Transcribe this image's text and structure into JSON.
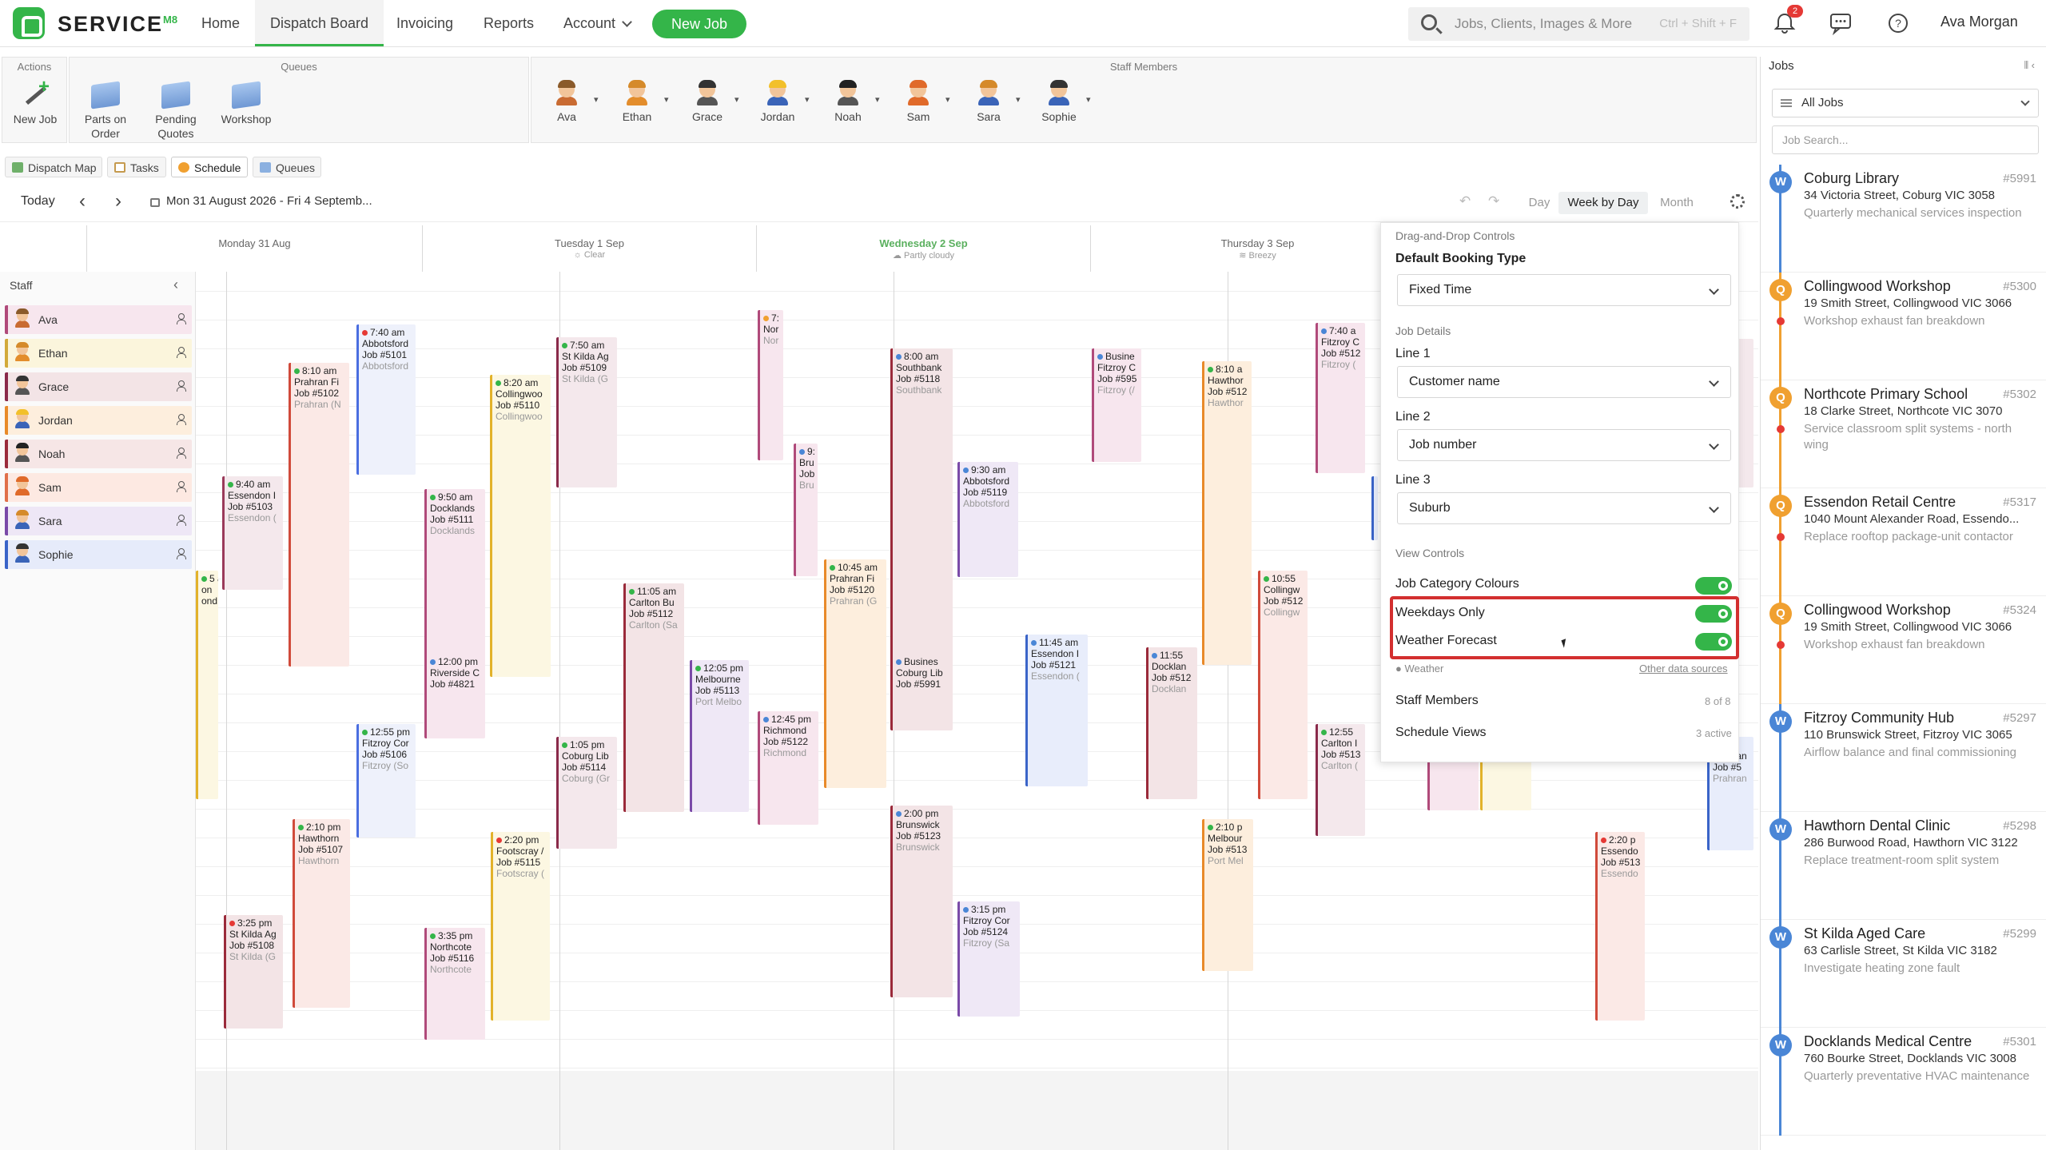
{
  "app": {
    "brand": "SERVICE",
    "brand_sup": "M8",
    "nav": [
      "Home",
      "Dispatch Board",
      "Invoicing",
      "Reports",
      "Account"
    ],
    "new_job": "New Job",
    "search_placeholder": "Jobs, Clients, Images & More",
    "search_shortcut": "Ctrl + Shift + F",
    "notification_count": "2",
    "user_name": "Ava Morgan"
  },
  "toolbar": {
    "actions_title": "Actions",
    "queues_title": "Queues",
    "staff_title": "Staff Members",
    "new_job": "New Job",
    "queues": [
      "Parts on Order",
      "Pending Quotes",
      "Workshop"
    ],
    "staff": [
      "Ava",
      "Ethan",
      "Grace",
      "Jordan",
      "Noah",
      "Sam",
      "Sara",
      "Sophie"
    ]
  },
  "tabs": [
    "Dispatch Map",
    "Tasks",
    "Schedule",
    "Queues"
  ],
  "calendar": {
    "today": "Today",
    "range": "Mon 31 August 2026 - Fri 4 Septemb...",
    "views": [
      "Day",
      "Week by Day",
      "Month"
    ],
    "days": [
      {
        "name": "Monday 31 Aug",
        "weather": ""
      },
      {
        "name": "Tuesday 1 Sep",
        "weather": "Clear"
      },
      {
        "name": "Wednesday 2 Sep",
        "weather": "Partly cloudy"
      },
      {
        "name": "Thursday 3 Sep",
        "weather": "Breezy"
      }
    ]
  },
  "staff_panel": {
    "title": "Staff",
    "members": [
      "Ava",
      "Ethan",
      "Grace",
      "Jordan",
      "Noah",
      "Sam",
      "Sara",
      "Sophie"
    ]
  },
  "settings": {
    "dnd_title": "Drag-and-Drop Controls",
    "booking_type_label": "Default Booking Type",
    "booking_type_value": "Fixed Time",
    "job_details_title": "Job Details",
    "line1_label": "Line 1",
    "line1_value": "Customer name",
    "line2_label": "Line 2",
    "line2_value": "Job number",
    "line3_label": "Line 3",
    "line3_value": "Suburb",
    "view_controls_title": "View Controls",
    "job_category_colours": "Job Category Colours",
    "weekdays_only": "Weekdays Only",
    "weather_forecast": "Weather Forecast",
    "weather_source": "Weather",
    "other_sources": "Other data sources",
    "staff_members": "Staff Members",
    "staff_members_count": "8 of 8",
    "schedule_views": "Schedule Views",
    "schedule_views_count": "3 active"
  },
  "jobs_panel": {
    "title": "Jobs",
    "filter": "All Jobs",
    "search_placeholder": "Job Search...",
    "items": [
      {
        "badge": "W",
        "title": "Coburg Library",
        "number": "#5991",
        "address": "34 Victoria Street, Coburg VIC 3058",
        "desc": "Quarterly mechanical services inspection",
        "color": "#4a86d6"
      },
      {
        "badge": "Q",
        "title": "Collingwood Workshop",
        "number": "#5300",
        "address": "19 Smith Street, Collingwood VIC 3066",
        "desc": "Workshop exhaust fan breakdown",
        "color": "#f0a030"
      },
      {
        "badge": "Q",
        "title": "Northcote Primary School",
        "number": "#5302",
        "address": "18 Clarke Street, Northcote VIC 3070",
        "desc": "Service classroom split systems - north wing",
        "color": "#f0a030"
      },
      {
        "badge": "Q",
        "title": "Essendon Retail Centre",
        "number": "#5317",
        "address": "1040 Mount Alexander Road, Essendo...",
        "desc": "Replace rooftop package-unit contactor",
        "color": "#f0a030"
      },
      {
        "badge": "Q",
        "title": "Collingwood Workshop",
        "number": "#5324",
        "address": "19 Smith Street, Collingwood VIC 3066",
        "desc": "Workshop exhaust fan breakdown",
        "color": "#f0a030"
      },
      {
        "badge": "W",
        "title": "Fitzroy Community Hub",
        "number": "#5297",
        "address": "110 Brunswick Street, Fitzroy VIC 3065",
        "desc": "Airflow balance and final commissioning",
        "color": "#4a86d6"
      },
      {
        "badge": "W",
        "title": "Hawthorn Dental Clinic",
        "number": "#5298",
        "address": "286 Burwood Road, Hawthorn VIC 3122",
        "desc": "Replace treatment-room split system",
        "color": "#4a86d6"
      },
      {
        "badge": "W",
        "title": "St Kilda Aged Care",
        "number": "#5299",
        "address": "63 Carlisle Street, St Kilda VIC 3182",
        "desc": "Investigate heating zone fault",
        "color": "#4a86d6"
      },
      {
        "badge": "W",
        "title": "Docklands Medical Centre",
        "number": "#5301",
        "address": "760 Bourke Street, Docklands VIC 3008",
        "desc": "Quarterly preventative HVAC maintenance",
        "color": "#4a86d6"
      }
    ]
  },
  "grid_jobs": [
    {
      "time": "7:40 am",
      "client": "Abbotsford",
      "job": "Job #5101",
      "sub": "Abbotsford"
    },
    {
      "time": "8:10 am",
      "client": "Prahran Fi",
      "job": "Job #5102",
      "sub": "Prahran (N"
    },
    {
      "time": "9:40 am",
      "client": "Essendon I",
      "job": "Job #5103",
      "sub": "Essendon ("
    },
    {
      "time": "12:55 pm",
      "client": "Fitzroy Cor",
      "job": "Job #5106",
      "sub": "Fitzroy (So"
    },
    {
      "time": "2:10 pm",
      "client": "Hawthorn",
      "job": "Job #5107",
      "sub": "Hawthorn"
    },
    {
      "time": "3:25 pm",
      "client": "St Kilda Ag",
      "job": "Job #5108",
      "sub": "St Kilda (G"
    },
    {
      "time": "7:50 am",
      "client": "St Kilda Ag",
      "job": "Job #5109",
      "sub": "St Kilda (G"
    },
    {
      "time": "8:20 am",
      "client": "Collingwoo",
      "job": "Job #5110",
      "sub": "Collingwoo"
    },
    {
      "time": "9:50 am",
      "client": "Docklands",
      "job": "Job #5111",
      "sub": "Docklands"
    },
    {
      "time": "11:05 am",
      "client": "Carlton Bu",
      "job": "Job #5112",
      "sub": "Carlton (Sa"
    },
    {
      "time": "12:05 pm",
      "client": "Melbourne",
      "job": "Job #5113",
      "sub": "Port Melbo"
    },
    {
      "time": "12:00 pm",
      "client": "Riverside C",
      "job": "Job #4821",
      "sub": ""
    },
    {
      "time": "1:05 pm",
      "client": "Coburg Lib",
      "job": "Job #5114",
      "sub": "Coburg (Gr"
    },
    {
      "time": "2:20 pm",
      "client": "Footscray /",
      "job": "Job #5115",
      "sub": "Footscray ("
    },
    {
      "time": "3:35 pm",
      "client": "Northcote",
      "job": "Job #5116",
      "sub": "Northcote"
    },
    {
      "time": "7:",
      "client": "Nor",
      "job": "",
      "sub": "Nor"
    },
    {
      "time": "9:",
      "client": "Bru",
      "job": "Job",
      "sub": "Bru"
    },
    {
      "time": "8:00 am",
      "client": "Southbank",
      "job": "Job #5118",
      "sub": "Southbank"
    },
    {
      "time": "9:30 am",
      "client": "Abbotsford",
      "job": "Job #5119",
      "sub": "Abbotsford"
    },
    {
      "time": "10:45 am",
      "client": "Prahran Fi",
      "job": "Job #5120",
      "sub": "Prahran (G"
    },
    {
      "time": "Busines",
      "client": "Coburg Lib",
      "job": "Job #5991",
      "sub": ""
    },
    {
      "time": "12:45 pm",
      "client": "Richmond",
      "job": "Job #5122",
      "sub": "Richmond"
    },
    {
      "time": "2:00 pm",
      "client": "Brunswick",
      "job": "Job #5123",
      "sub": "Brunswick"
    },
    {
      "time": "3:15 pm",
      "client": "Fitzroy Cor",
      "job": "Job #5124",
      "sub": "Fitzroy (Sa"
    },
    {
      "time": "11:45 am",
      "client": "Essendon I",
      "job": "Job #5121",
      "sub": "Essendon ("
    },
    {
      "time": "Busine",
      "client": "Fitzroy C",
      "job": "Job #595",
      "sub": "Fitzroy (/"
    },
    {
      "time": "8:10 a",
      "client": "Hawthor",
      "job": "Job #512",
      "sub": "Hawthor"
    },
    {
      "time": "7:40 a",
      "client": "Fitzroy C",
      "job": "Job #512",
      "sub": "Fitzroy ("
    },
    {
      "time": "11:55",
      "client": "Docklan",
      "job": "Job #512",
      "sub": "Docklan"
    },
    {
      "time": "10:55",
      "client": "Collingw",
      "job": "Job #512",
      "sub": "Collingw"
    },
    {
      "time": "12:55",
      "client": "Carlton I",
      "job": "Job #513",
      "sub": "Carlton ("
    },
    {
      "time": "2:10 p",
      "client": "Melbour",
      "job": "Job #513",
      "sub": "Port Mel"
    },
    {
      "time": "2:20 p",
      "client": "Essendo",
      "job": "Job #513",
      "sub": "Essendo"
    },
    {
      "time": "5 ar",
      "client": "on",
      "job": "ond",
      "sub": ""
    },
    {
      "time": "",
      "client": "Prahran",
      "job": "Job #5",
      "sub": "Prahran"
    }
  ]
}
